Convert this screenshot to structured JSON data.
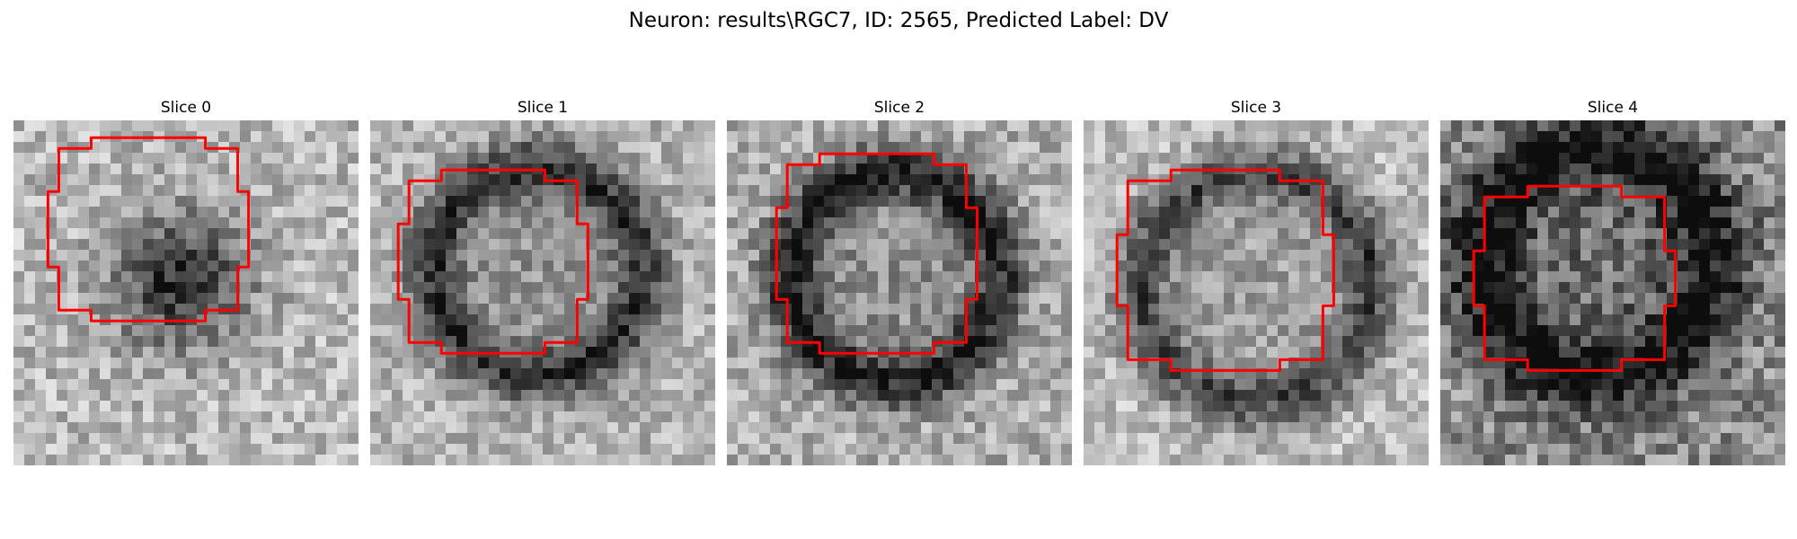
{
  "figure": {
    "title": "Neuron: results\\RGC7, ID: 2565, Predicted Label: DV"
  },
  "panels": [
    {
      "title": "Slice 0"
    },
    {
      "title": "Slice 1"
    },
    {
      "title": "Slice 2"
    },
    {
      "title": "Slice 3"
    },
    {
      "title": "Slice 4"
    }
  ],
  "style": {
    "contour_color": "#ff0000",
    "colormap": "gray"
  }
}
